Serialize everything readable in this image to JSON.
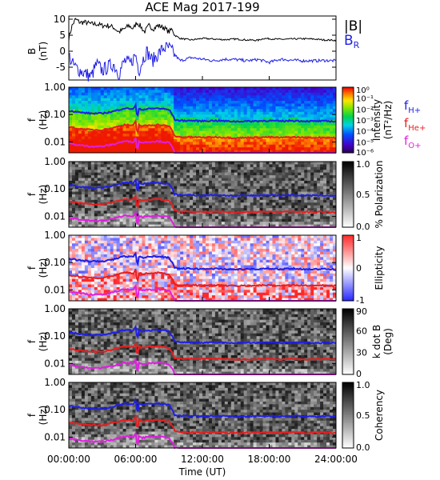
{
  "title": "ACE Mag 2017-199",
  "colors": {
    "black": "#000000",
    "blue": "#1f1fe6",
    "red": "#e61f1f",
    "magenta": "#e01fe0"
  },
  "x_axis": {
    "label": "Time (UT)",
    "ticks": [
      "00:00:00",
      "06:00:00",
      "12:00:00",
      "18:00:00",
      "24:00:00"
    ],
    "range_hours": [
      0,
      24
    ]
  },
  "chart_data": [
    {
      "type": "line",
      "panel": "magnetic-field",
      "ylabel_top": "B",
      "ylabel_unit": "(nT)",
      "yticks": [
        "10",
        "5",
        "0",
        "-5"
      ],
      "ylim": [
        -9,
        11
      ],
      "legend": [
        {
          "name": "|B|",
          "color": "#000000"
        },
        {
          "name": "B",
          "sub": "R",
          "color": "#1f1fe6"
        }
      ],
      "series": [
        {
          "name": "|B|",
          "color": "#000000",
          "x": [
            0,
            0.3,
            0.6,
            1,
            1.5,
            2,
            2.5,
            3,
            3.5,
            4,
            4.5,
            5,
            5.4,
            5.8,
            6.1,
            6.4,
            6.8,
            7.2,
            7.6,
            8,
            8.5,
            9,
            9.3,
            9.5,
            10,
            11,
            12,
            13,
            14,
            15,
            16,
            17,
            17.5,
            18,
            19,
            20,
            21,
            22,
            23,
            24
          ],
          "y": [
            4,
            8,
            10,
            9,
            9,
            8.5,
            8.5,
            8,
            8,
            7.5,
            6,
            7,
            8,
            7,
            9,
            8,
            6,
            8,
            7,
            8,
            7.5,
            6,
            7,
            5,
            4,
            3.5,
            4,
            3.8,
            3.6,
            3.8,
            3.5,
            3.4,
            4,
            3.9,
            3.7,
            3.8,
            3.9,
            3.8,
            3.5,
            3.4
          ]
        },
        {
          "name": "B",
          "color": "#1f1fe6",
          "x": [
            0,
            0.3,
            0.6,
            1,
            1.5,
            2,
            2.5,
            3,
            3.5,
            4,
            4.5,
            5,
            5.5,
            6,
            6.3,
            6.6,
            7,
            7.5,
            8,
            8.5,
            9,
            9.5,
            10,
            11,
            12,
            13,
            14,
            15,
            16,
            17,
            18,
            19,
            20,
            21,
            22,
            23,
            24
          ],
          "y": [
            -1,
            -4,
            -5,
            -6,
            -7,
            -8,
            -4,
            -6,
            -5,
            -4,
            -7,
            -3,
            -4,
            -1,
            -6,
            -3,
            0,
            -3,
            -1,
            1,
            1,
            -1,
            -3,
            -2,
            -2.5,
            -3,
            -2.5,
            -2.6,
            -3,
            -2.6,
            -3.5,
            -2.5,
            -2.8,
            -3,
            -3,
            -2.9,
            -3
          ]
        }
      ]
    },
    {
      "type": "heatmap",
      "panel": "intensity",
      "colormap": "rainbow",
      "ylabel_top": "f",
      "ylabel_unit": "(Hz)",
      "yticks": [
        "1.00",
        "0.10",
        "0.01"
      ],
      "ylim": [
        0.004,
        1
      ],
      "colorbar": {
        "label": "Intensity",
        "unit": "(nT²/Hz)",
        "ticks": [
          "10⁰",
          "10⁻¹",
          "10⁻²",
          "10⁻³",
          "10⁻⁴",
          "10⁻⁵",
          "10⁻⁶"
        ]
      },
      "legend": [
        {
          "name": "f",
          "sub": "H+",
          "color": "#1f1fe6"
        },
        {
          "name": "f",
          "sub": "He+",
          "color": "#e61f1f"
        },
        {
          "name": "f",
          "sub": "O+",
          "color": "#e01fe0"
        }
      ]
    },
    {
      "type": "heatmap",
      "panel": "polarization",
      "colormap": "gray",
      "ylabel_top": "f",
      "ylabel_unit": "(Hz)",
      "yticks": [
        "1.00",
        "0.10",
        "0.01"
      ],
      "colorbar": {
        "label": "% Polarization",
        "ticks": [
          "1.0",
          "0.5",
          "0.0"
        ]
      }
    },
    {
      "type": "heatmap",
      "panel": "ellipticity",
      "colormap": "bwr",
      "ylabel_top": "f",
      "ylabel_unit": "(Hz)",
      "yticks": [
        "1.00",
        "0.10",
        "0.01"
      ],
      "colorbar": {
        "label": "Ellipticity",
        "ticks": [
          "1",
          "0",
          "-1"
        ]
      }
    },
    {
      "type": "heatmap",
      "panel": "k-dot-b",
      "colormap": "gray",
      "ylabel_top": "f",
      "ylabel_unit": "(Hz)",
      "yticks": [
        "1.00",
        "0.10",
        "0.01"
      ],
      "colorbar": {
        "label": "k dot B",
        "unit": "(Deg)",
        "ticks": [
          "90",
          "60",
          "30",
          "0"
        ]
      }
    },
    {
      "type": "heatmap",
      "panel": "coherency",
      "colormap": "gray",
      "ylabel_top": "f",
      "ylabel_unit": "(Hz)",
      "yticks": [
        "1.00",
        "0.10",
        "0.01"
      ],
      "colorbar": {
        "label": "Coherency",
        "ticks": [
          "1.0",
          "0.5",
          "0.0"
        ]
      }
    }
  ],
  "gyro_lines": {
    "x": [
      0,
      1,
      2,
      3,
      4,
      5,
      5.8,
      6,
      6.15,
      6.3,
      6.6,
      7,
      8,
      9,
      9.3,
      9.5,
      10,
      11,
      12,
      13,
      14,
      15,
      16,
      17,
      18,
      19,
      20,
      21,
      22,
      23,
      24
    ],
    "fH": [
      0.14,
      0.12,
      0.11,
      0.11,
      0.13,
      0.17,
      0.16,
      0.22,
      0.05,
      0.17,
      0.15,
      0.16,
      0.17,
      0.15,
      0.1,
      0.065,
      0.06,
      0.06,
      0.058,
      0.06,
      0.058,
      0.056,
      0.057,
      0.058,
      0.06,
      0.057,
      0.06,
      0.058,
      0.057,
      0.058,
      0.056
    ],
    "fHe_ratio": 0.25,
    "fO_ratio": 0.0625
  }
}
